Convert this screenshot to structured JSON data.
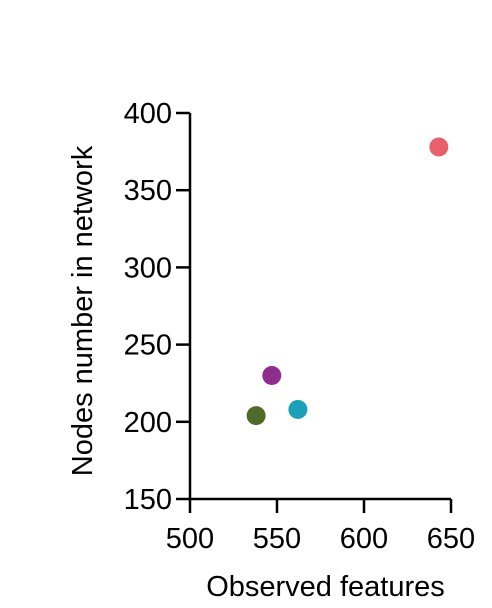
{
  "chart_data": {
    "type": "scatter",
    "title": "",
    "xlabel": "Observed features",
    "ylabel": "Nodes number in network",
    "xlim": [
      500,
      650
    ],
    "ylim": [
      150,
      400
    ],
    "xticks": [
      "500",
      "550",
      "600",
      "650"
    ],
    "yticks": [
      "150",
      "200",
      "250",
      "300",
      "350",
      "400"
    ],
    "grid": false,
    "legend": "none",
    "points": [
      {
        "x": 538,
        "y": 204,
        "color": "#4F6B2B"
      },
      {
        "x": 547,
        "y": 230,
        "color": "#8E2F8E"
      },
      {
        "x": 562,
        "y": 208,
        "color": "#1AA0B8"
      },
      {
        "x": 643,
        "y": 378,
        "color": "#E8606E"
      }
    ]
  }
}
